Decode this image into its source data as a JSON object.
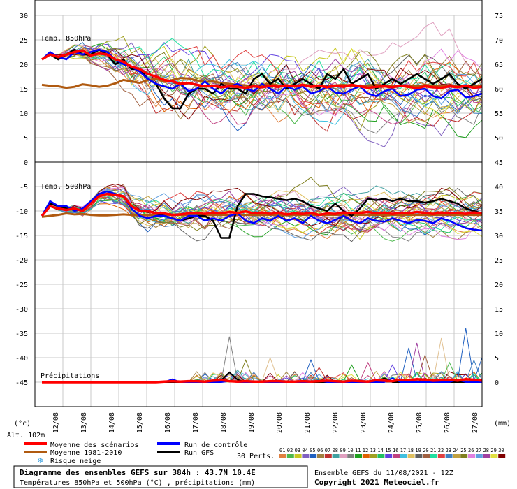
{
  "chart_data": {
    "type": "line",
    "footer_title": "Diagramme des ensembles GEFS sur 384h : 43.7N 10.4E",
    "footer_subtitle": "Températures 850hPa et 500hPa (°C) , précipitations (mm)",
    "footer_run": "Ensemble GEFS du 11/08/2021 - 12Z",
    "footer_copyright": "Copyright 2021 Meteociel.fr",
    "altitude_label": "Alt. 102m",
    "left_unit": "(°c)",
    "right_unit": "(mm)",
    "x_labels": [
      "12/08",
      "13/08",
      "14/08",
      "15/08",
      "16/08",
      "17/08",
      "18/08",
      "19/08",
      "20/08",
      "21/08",
      "22/08",
      "23/08",
      "24/08",
      "25/08",
      "26/08",
      "27/08"
    ],
    "left_axis": {
      "ticks": [
        30,
        25,
        20,
        15,
        10,
        5,
        0,
        -5,
        -10,
        -15,
        -20,
        -25,
        -30,
        -35,
        -40,
        -45
      ]
    },
    "right_axis": {
      "ticks": [
        75,
        70,
        65,
        60,
        55,
        50,
        45,
        40,
        35,
        30,
        25,
        20,
        15,
        10,
        5,
        0
      ]
    },
    "panels": [
      {
        "label": "Temp. 850hPa",
        "ylim": [
          0,
          30
        ]
      },
      {
        "label": "Temp. 500hPa",
        "ylim": [
          -45,
          0
        ]
      },
      {
        "label": "Précipitations",
        "ylim": [
          0,
          15
        ]
      }
    ],
    "legend": {
      "mean": {
        "label": "Moyenne des scénarios",
        "color": "#ff0000"
      },
      "climo": {
        "label": "Moyenne 1981-2010",
        "color": "#b05a10"
      },
      "snow": {
        "label": "Risque neige",
        "color": "#3aa0e0"
      },
      "control": {
        "label": "Run de contrôle",
        "color": "#0000ff"
      },
      "gfs": {
        "label": "Run GFS",
        "color": "#000000"
      },
      "perts_label": "30 Perts.",
      "perts": [
        "01",
        "02",
        "03",
        "04",
        "05",
        "06",
        "07",
        "08",
        "09",
        "10",
        "11",
        "12",
        "13",
        "14",
        "15",
        "16",
        "17",
        "18",
        "19",
        "20",
        "21",
        "22",
        "23",
        "24",
        "25",
        "26",
        "27",
        "28",
        "29",
        "30"
      ],
      "pert_colors": [
        "#e08040",
        "#4cb84c",
        "#c8c820",
        "#8060c0",
        "#2060c0",
        "#a08040",
        "#c03030",
        "#40a0a0",
        "#e0a0c0",
        "#808080",
        "#20a020",
        "#e06000",
        "#a0a020",
        "#20c060",
        "#6040e0",
        "#c04080",
        "#40c0e0",
        "#e0c060",
        "#606060",
        "#a06040",
        "#20e0a0",
        "#e04040",
        "#4080c0",
        "#c0a040",
        "#808020",
        "#e080e0",
        "#60a0e0",
        "#a040a0",
        "#e0e040",
        "#800000"
      ]
    },
    "series": {
      "t850_mean": [
        21,
        22,
        21.5,
        22,
        22.5,
        22.8,
        21.8,
        22.2,
        22,
        21,
        20.5,
        19.5,
        19,
        18,
        17.5,
        16.8,
        16.5,
        16,
        16.2,
        15.8,
        15.5,
        15.6,
        15.3,
        15.5,
        15.4,
        15.2,
        15.5,
        15.3,
        15.6,
        15.4,
        15.7,
        15.5,
        15.8,
        15.4,
        15.6,
        15.3,
        15.6,
        15.4,
        15.8,
        15.5,
        15.2,
        15.4,
        15.5,
        15.3,
        15.6,
        15.4,
        15.1,
        15.5,
        15.3,
        15.2,
        15.5,
        15.3,
        15.6,
        15.2,
        15.4
      ],
      "t850_climo": [
        15.8,
        15.6,
        15.5,
        15.2,
        15.4,
        15.9,
        15.7,
        15.4,
        15.6,
        16.1,
        16.8,
        16.5,
        16.2,
        16.8,
        17,
        16.4,
        16.8,
        17.2,
        17.1,
        16.7,
        16.4,
        16.5,
        16.2,
        16,
        15.8,
        15.7,
        15.5,
        15.8,
        16,
        15.7,
        15.5,
        15.6,
        15.8,
        15.7,
        15.5,
        15.6,
        15.7,
        15.8,
        15.6,
        15.5,
        15.7,
        15.8,
        15.6,
        15.5,
        15.7,
        15.6,
        15.5,
        15.8,
        15.6,
        15.5,
        15.7,
        15.6,
        15.5,
        15.6,
        15.7
      ],
      "t850_control": [
        21,
        22.5,
        21.5,
        21,
        22.5,
        22,
        22.5,
        23,
        22.5,
        21,
        20,
        19.5,
        18.5,
        17,
        16,
        15.5,
        15,
        16,
        14.5,
        15,
        16.5,
        15,
        14,
        15.5,
        16,
        15,
        14.5,
        16,
        15,
        14,
        15.5,
        14.8,
        15.5,
        14,
        14.5,
        15.5,
        14.2,
        14,
        14.8,
        15.5,
        14,
        13.5,
        14.5,
        15,
        13.5,
        13.8,
        14.8,
        15,
        13.5,
        13,
        14.5,
        14.8,
        13.2,
        13.5,
        14
      ],
      "t850_gfs": [
        21,
        22,
        21,
        22,
        23,
        22,
        22,
        23,
        22,
        20,
        21,
        19,
        19,
        17,
        16,
        13,
        11,
        11,
        14,
        15,
        15,
        14,
        16,
        15,
        15,
        14,
        17,
        18,
        16,
        17,
        15,
        16,
        17,
        16,
        15,
        18,
        17,
        19,
        16,
        17,
        18,
        15,
        16,
        17,
        16,
        17,
        18,
        17,
        16,
        17,
        18,
        16,
        15,
        16,
        17
      ],
      "t500_mean": [
        -11,
        -9,
        -9.5,
        -9.8,
        -9.5,
        -10,
        -8.5,
        -7,
        -6.5,
        -6.7,
        -7,
        -9,
        -10,
        -10,
        -10.5,
        -10.5,
        -10.8,
        -10.7,
        -10.5,
        -10.4,
        -10.6,
        -10.3,
        -10.5,
        -10.2,
        -10.4,
        -10.1,
        -10.5,
        -10.3,
        -10.6,
        -10.4,
        -10.7,
        -10.5,
        -10.6,
        -10.4,
        -10.8,
        -10.5,
        -10.6,
        -10.3,
        -10.5,
        -10.4,
        -10.2,
        -10.5,
        -10.3,
        -10.6,
        -10.4,
        -10.5,
        -10.2,
        -10.4,
        -10.6,
        -10.3,
        -10.5,
        -10.4,
        -10.6,
        -10.3,
        -10.5
      ],
      "t500_climo": [
        -11.2,
        -11,
        -10.8,
        -10.5,
        -10.7,
        -10.6,
        -10.8,
        -10.9,
        -10.9,
        -10.8,
        -10.7,
        -10.8,
        -10.8,
        -10.8,
        -10.8,
        -10.8,
        -10.8,
        -10.8,
        -10.8,
        -10.8,
        -10.8,
        -10.8,
        -10.8,
        -10.8,
        -10.8,
        -10.8,
        -10.8,
        -10.8,
        -10.8,
        -10.8,
        -10.8,
        -10.8,
        -10.8,
        -10.8,
        -10.8,
        -10.8,
        -10.8,
        -10.8,
        -10.8,
        -10.8,
        -10.8,
        -10.8,
        -10.8,
        -10.8,
        -10.8,
        -10.8,
        -10.8,
        -10.8,
        -10.8,
        -10.8,
        -10.8,
        -10.8,
        -10.8,
        -10.8,
        -10.8
      ],
      "t500_control": [
        -11,
        -8,
        -9,
        -9,
        -10,
        -9.5,
        -8,
        -6.5,
        -6,
        -6.5,
        -7,
        -9.5,
        -11,
        -11.5,
        -11,
        -11,
        -11.5,
        -12,
        -11,
        -11,
        -12,
        -11.5,
        -12,
        -11,
        -10.5,
        -12,
        -12.5,
        -11.5,
        -12,
        -11,
        -12,
        -11.5,
        -12.5,
        -11,
        -12,
        -12.5,
        -11.8,
        -11,
        -12,
        -12.5,
        -11.5,
        -12,
        -12.2,
        -11.5,
        -12,
        -12.5,
        -11.8,
        -12,
        -12.5,
        -11.5,
        -12,
        -12.8,
        -13.5,
        -13.8,
        -14
      ],
      "t500_gfs": [
        -11,
        -8.5,
        -9,
        -9.5,
        -9.5,
        -10,
        -8,
        -7,
        -6.5,
        -6.5,
        -7,
        -9,
        -10,
        -10,
        -10.5,
        -11,
        -11.5,
        -12,
        -11.5,
        -11,
        -11,
        -12,
        -15.5,
        -15.5,
        -9,
        -6.5,
        -6.5,
        -7,
        -7.2,
        -7.5,
        -7.8,
        -7.5,
        -8,
        -9,
        -9.5,
        -10,
        -8.5,
        -10,
        -11,
        -9.5,
        -7.5,
        -7.8,
        -7.5,
        -8,
        -7.5,
        -8,
        -8,
        -8.3,
        -8,
        -7.5,
        -8,
        -8.5,
        -9.5,
        -10,
        -10.5
      ],
      "precip_mean": [
        0,
        0,
        0,
        0,
        0,
        0,
        0,
        0,
        0,
        0,
        0,
        0,
        0,
        0,
        0,
        0.1,
        0.2,
        0.1,
        0.2,
        0.2,
        0.1,
        0.3,
        0.4,
        0.2,
        0.1,
        0.2,
        0.1,
        0.1,
        0.2,
        0.2,
        0.1,
        0.1,
        0.2,
        0.1,
        0.2,
        0.3,
        0.2,
        0.1,
        0.3,
        0.2,
        0.1,
        0.4,
        0.3,
        0.2,
        0.5,
        0.4,
        0.6,
        0.5,
        0.3,
        0.4,
        0.5,
        0.3,
        0.6,
        0.5,
        0.3
      ],
      "precip_control": [
        0,
        0,
        0,
        0,
        0,
        0,
        0,
        0,
        0,
        0,
        0,
        0,
        0,
        0,
        0,
        0,
        0.6,
        0,
        0,
        0,
        0,
        0,
        0,
        0.2,
        0,
        0,
        0,
        0,
        0,
        0,
        0,
        0,
        0,
        0,
        0.3,
        0,
        0,
        0,
        0,
        0,
        0,
        0,
        0,
        0.8,
        0,
        0,
        0,
        0,
        0,
        0,
        0,
        0.5,
        0,
        0,
        0
      ],
      "precip_gfs": [
        0,
        0,
        0,
        0,
        0,
        0,
        0,
        0,
        0,
        0,
        0,
        0,
        0,
        0,
        0,
        0,
        0,
        0,
        0,
        0,
        0,
        0,
        0.4,
        2,
        0.5,
        0,
        0,
        0,
        0,
        0,
        0,
        0,
        0,
        0,
        0,
        0,
        0,
        0,
        0,
        0,
        0,
        0,
        0.8,
        0,
        0,
        0,
        0,
        0,
        0,
        0.3,
        0,
        0,
        0,
        0,
        0.4
      ],
      "precip_spikes": [
        {
          "i": 23,
          "v": 9.3,
          "c": "#808080"
        },
        {
          "i": 24,
          "v": 2.5,
          "c": "#40a0a0"
        },
        {
          "i": 25,
          "v": 4.5,
          "c": "#808020"
        },
        {
          "i": 26,
          "v": 1.5,
          "c": "#e08040"
        },
        {
          "i": 28,
          "v": 5,
          "c": "#e0c090"
        },
        {
          "i": 33,
          "v": 4.5,
          "c": "#2060c0"
        },
        {
          "i": 34,
          "v": 3,
          "c": "#c03030"
        },
        {
          "i": 38,
          "v": 3.5,
          "c": "#20a020"
        },
        {
          "i": 40,
          "v": 4,
          "c": "#c04080"
        },
        {
          "i": 43,
          "v": 3.5,
          "c": "#6040e0"
        },
        {
          "i": 45,
          "v": 7,
          "c": "#2060c0"
        },
        {
          "i": 46,
          "v": 8,
          "c": "#a040a0"
        },
        {
          "i": 47,
          "v": 5.5,
          "c": "#a06040"
        },
        {
          "i": 49,
          "v": 9,
          "c": "#e0c090"
        },
        {
          "i": 50,
          "v": 4,
          "c": "#4cb84c"
        },
        {
          "i": 52,
          "v": 11,
          "c": "#2060c0"
        },
        {
          "i": 53,
          "v": 4.5,
          "c": "#4080c0"
        },
        {
          "i": 54,
          "v": 5,
          "c": "#2060c0"
        }
      ]
    }
  }
}
